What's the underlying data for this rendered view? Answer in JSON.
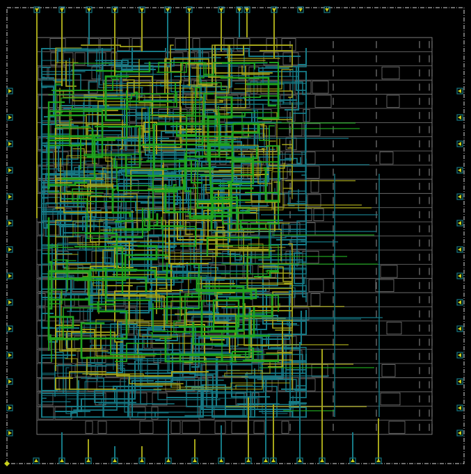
{
  "view": {
    "background": "#000000",
    "die_boundary_style": "dash-dot",
    "layers": [
      {
        "name": "cell-outlines",
        "color": "#7a7a7a"
      },
      {
        "name": "metal-yellow",
        "color": "#a6a61a"
      },
      {
        "name": "metal-green",
        "color": "#1fa31f"
      },
      {
        "name": "metal-teal",
        "color": "#167a86"
      },
      {
        "name": "pin-markers",
        "color": "#c8d21c"
      },
      {
        "name": "boundary",
        "color": "#d8d8d8"
      }
    ]
  },
  "pins": {
    "top_count": 13,
    "bottom_count": 15,
    "left_count": 14,
    "right_count": 14
  },
  "core": {
    "row_count": 28,
    "column_divider_count": 6,
    "icon": "placed-std-cell-rows"
  }
}
